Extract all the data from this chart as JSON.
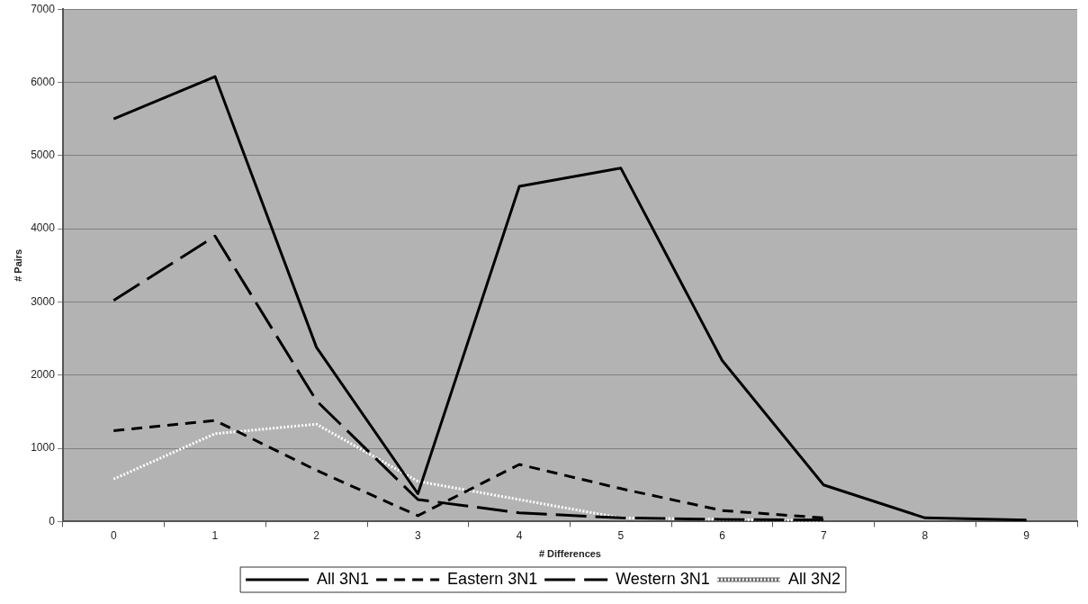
{
  "chart_data": {
    "type": "line",
    "xlabel": "# Differences",
    "ylabel": "# Pairs",
    "categories": [
      "0",
      "1",
      "2",
      "3",
      "4",
      "5",
      "6",
      "7",
      "8",
      "9"
    ],
    "series": [
      {
        "name": "All 3N1",
        "color": "#000000",
        "line_style": "solid",
        "values": [
          5500,
          6080,
          2380,
          380,
          4580,
          4830,
          2200,
          500,
          50,
          20
        ]
      },
      {
        "name": "Eastern 3N1",
        "color": "#000000",
        "line_style": "dashed",
        "values": [
          1240,
          1380,
          700,
          80,
          780,
          450,
          150,
          50,
          null,
          null
        ]
      },
      {
        "name": "Western 3N1",
        "color": "#000000",
        "line_style": "longdash",
        "values": [
          3020,
          3900,
          1650,
          300,
          120,
          50,
          30,
          20,
          null,
          null
        ]
      },
      {
        "name": "All 3N2",
        "color": "#ffffff",
        "line_style": "dotted",
        "values": [
          580,
          1200,
          1330,
          550,
          300,
          50,
          30,
          10,
          null,
          null
        ]
      }
    ],
    "ylim": [
      0,
      7000
    ],
    "yticks": [
      0,
      1000,
      2000,
      3000,
      4000,
      5000,
      6000,
      7000
    ],
    "grid": "y",
    "legend": "bottom",
    "marker": "none"
  }
}
